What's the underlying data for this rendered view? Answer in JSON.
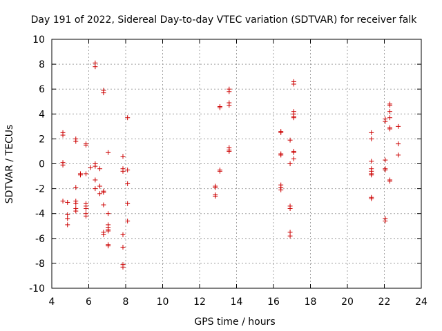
{
  "chart_data": {
    "type": "scatter",
    "title": "Day 191 of 2022, Sidereal Day-to-day VTEC variation (SDTVAR) for receiver falk",
    "xlabel": "GPS time / hours",
    "ylabel": "SDTVAR / TECUs",
    "xlim": [
      4,
      24
    ],
    "ylim": [
      -10,
      10
    ],
    "xticks": [
      4,
      6,
      8,
      10,
      12,
      14,
      16,
      18,
      20,
      22,
      24
    ],
    "yticks": [
      -10,
      -8,
      -6,
      -4,
      -2,
      0,
      2,
      4,
      6,
      8,
      10
    ],
    "grid": true,
    "marker": "+",
    "color": "#cc0000",
    "series": [
      {
        "name": "SDTVAR",
        "points": [
          [
            4.6,
            2.5
          ],
          [
            4.6,
            2.3
          ],
          [
            4.6,
            0.1
          ],
          [
            4.6,
            -0.1
          ],
          [
            4.6,
            -3.0
          ],
          [
            4.85,
            -3.1
          ],
          [
            4.85,
            -4.1
          ],
          [
            4.85,
            -4.4
          ],
          [
            4.85,
            -4.9
          ],
          [
            5.3,
            2.0
          ],
          [
            5.3,
            1.8
          ],
          [
            5.3,
            -1.9
          ],
          [
            5.3,
            -3.0
          ],
          [
            5.3,
            -3.2
          ],
          [
            5.3,
            -3.6
          ],
          [
            5.3,
            -3.8
          ],
          [
            5.55,
            -0.8
          ],
          [
            5.55,
            -0.9
          ],
          [
            5.85,
            1.6
          ],
          [
            5.85,
            1.5
          ],
          [
            5.85,
            -0.8
          ],
          [
            5.85,
            -3.2
          ],
          [
            5.85,
            -3.4
          ],
          [
            5.85,
            -3.6
          ],
          [
            5.85,
            -4.0
          ],
          [
            5.85,
            -4.2
          ],
          [
            6.1,
            -0.3
          ],
          [
            6.35,
            8.1
          ],
          [
            6.35,
            7.8
          ],
          [
            6.35,
            0.0
          ],
          [
            6.35,
            -0.2
          ],
          [
            6.35,
            -1.3
          ],
          [
            6.35,
            -2.0
          ],
          [
            6.6,
            -0.4
          ],
          [
            6.6,
            -1.8
          ],
          [
            6.6,
            -2.4
          ],
          [
            6.8,
            5.9
          ],
          [
            6.8,
            5.7
          ],
          [
            6.8,
            -2.2
          ],
          [
            6.8,
            -2.3
          ],
          [
            6.8,
            -3.3
          ],
          [
            6.8,
            -5.5
          ],
          [
            6.8,
            -5.7
          ],
          [
            7.05,
            0.9
          ],
          [
            7.05,
            -4.0
          ],
          [
            7.05,
            -4.9
          ],
          [
            7.05,
            -5.1
          ],
          [
            7.05,
            -5.3
          ],
          [
            7.05,
            -5.4
          ],
          [
            7.05,
            -6.5
          ],
          [
            7.05,
            -6.6
          ],
          [
            7.85,
            0.6
          ],
          [
            7.85,
            -0.4
          ],
          [
            7.85,
            -0.6
          ],
          [
            7.85,
            -5.7
          ],
          [
            7.85,
            -6.7
          ],
          [
            7.85,
            -8.1
          ],
          [
            7.85,
            -8.3
          ],
          [
            8.1,
            3.7
          ],
          [
            8.1,
            -0.5
          ],
          [
            8.1,
            -1.6
          ],
          [
            8.1,
            -3.2
          ],
          [
            8.1,
            -4.6
          ],
          [
            12.85,
            -1.8
          ],
          [
            12.85,
            -1.9
          ],
          [
            12.85,
            -2.5
          ],
          [
            12.85,
            -2.6
          ],
          [
            13.1,
            4.6
          ],
          [
            13.1,
            4.5
          ],
          [
            13.1,
            -0.5
          ],
          [
            13.1,
            -0.6
          ],
          [
            13.6,
            6.0
          ],
          [
            13.6,
            5.8
          ],
          [
            13.6,
            4.9
          ],
          [
            13.6,
            4.7
          ],
          [
            13.6,
            1.3
          ],
          [
            13.6,
            1.1
          ],
          [
            13.6,
            1.0
          ],
          [
            16.4,
            2.6
          ],
          [
            16.4,
            2.5
          ],
          [
            16.4,
            0.8
          ],
          [
            16.4,
            0.7
          ],
          [
            16.4,
            -1.7
          ],
          [
            16.4,
            -1.9
          ],
          [
            16.4,
            -2.1
          ],
          [
            16.9,
            1.9
          ],
          [
            16.9,
            0.0
          ],
          [
            16.9,
            -3.4
          ],
          [
            16.9,
            -3.6
          ],
          [
            16.9,
            -5.5
          ],
          [
            16.9,
            -5.8
          ],
          [
            17.1,
            6.6
          ],
          [
            17.1,
            6.4
          ],
          [
            17.1,
            4.2
          ],
          [
            17.1,
            4.0
          ],
          [
            17.1,
            3.8
          ],
          [
            17.1,
            3.7
          ],
          [
            17.1,
            1.0
          ],
          [
            17.1,
            0.9
          ],
          [
            17.1,
            0.4
          ],
          [
            21.3,
            2.5
          ],
          [
            21.3,
            2.0
          ],
          [
            21.3,
            0.2
          ],
          [
            21.3,
            -0.4
          ],
          [
            21.3,
            -0.6
          ],
          [
            21.3,
            -0.8
          ],
          [
            21.3,
            -0.9
          ],
          [
            21.3,
            -2.7
          ],
          [
            21.3,
            -2.8
          ],
          [
            22.05,
            3.6
          ],
          [
            22.05,
            3.4
          ],
          [
            22.05,
            0.3
          ],
          [
            22.05,
            -0.4
          ],
          [
            22.05,
            -0.5
          ],
          [
            22.05,
            -4.4
          ],
          [
            22.05,
            -4.6
          ],
          [
            22.3,
            4.8
          ],
          [
            22.3,
            4.7
          ],
          [
            22.3,
            4.2
          ],
          [
            22.3,
            3.7
          ],
          [
            22.3,
            2.9
          ],
          [
            22.3,
            2.8
          ],
          [
            22.3,
            -1.3
          ],
          [
            22.3,
            -1.4
          ],
          [
            22.75,
            3.0
          ],
          [
            22.75,
            1.6
          ],
          [
            22.75,
            0.7
          ]
        ]
      }
    ]
  }
}
